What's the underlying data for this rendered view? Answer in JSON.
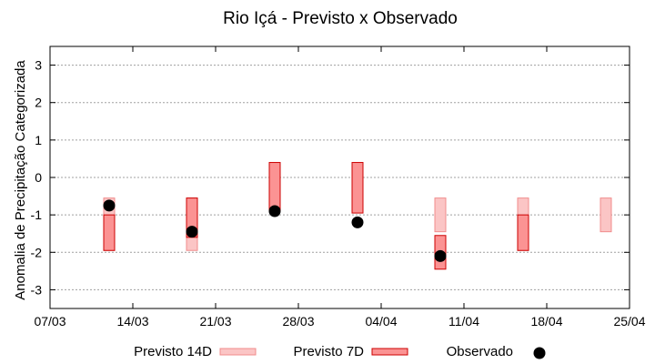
{
  "chart_data": {
    "type": "range",
    "title": "Rio Içá - Previsto x Observado",
    "xlabel": "",
    "ylabel": "Anomalia de Precipitação Categorizada",
    "ylim": [
      -3.5,
      3.5
    ],
    "yticks": [
      -3,
      -2,
      -1,
      0,
      1,
      2,
      3
    ],
    "xlim": [
      "2019-03-07",
      "2019-04-25"
    ],
    "xticks": [
      {
        "date": "2019-03-07",
        "label": "07/03"
      },
      {
        "date": "2019-03-14",
        "label": "14/03"
      },
      {
        "date": "2019-03-21",
        "label": "21/03"
      },
      {
        "date": "2019-03-28",
        "label": "28/03"
      },
      {
        "date": "2019-04-04",
        "label": "04/04"
      },
      {
        "date": "2019-04-11",
        "label": "11/04"
      },
      {
        "date": "2019-04-18",
        "label": "18/04"
      },
      {
        "date": "2019-04-25",
        "label": "25/04"
      }
    ],
    "grid": true,
    "series": [
      {
        "name": "Previsto 14D",
        "kind": "range",
        "fill": "#fbc5c5",
        "stroke": "#f08c8c",
        "points": [
          {
            "date": "2019-03-12",
            "low": -1.95,
            "high": -0.55
          },
          {
            "date": "2019-03-19",
            "low": -1.95,
            "high": -0.55
          },
          {
            "date": "2019-04-09",
            "low": -1.45,
            "high": -0.55
          },
          {
            "date": "2019-04-16",
            "low": -1.95,
            "high": -0.55
          },
          {
            "date": "2019-04-23",
            "low": -1.45,
            "high": -0.55
          }
        ]
      },
      {
        "name": "Previsto 7D",
        "kind": "range",
        "fill": "#fb9393",
        "stroke": "#cc0000",
        "points": [
          {
            "date": "2019-03-12",
            "low": -1.95,
            "high": -1.0
          },
          {
            "date": "2019-03-19",
            "low": -1.6,
            "high": -0.55
          },
          {
            "date": "2019-03-26",
            "low": -0.9,
            "high": 0.4
          },
          {
            "date": "2019-04-02",
            "low": -0.95,
            "high": 0.4
          },
          {
            "date": "2019-04-09",
            "low": -2.45,
            "high": -1.55
          },
          {
            "date": "2019-04-16",
            "low": -1.95,
            "high": -1.0
          }
        ]
      },
      {
        "name": "Observado",
        "kind": "scatter",
        "color": "#000000",
        "points": [
          {
            "date": "2019-03-12",
            "value": -0.75
          },
          {
            "date": "2019-03-19",
            "value": -1.45
          },
          {
            "date": "2019-03-26",
            "value": -0.9
          },
          {
            "date": "2019-04-02",
            "value": -1.2
          },
          {
            "date": "2019-04-09",
            "value": -2.1
          }
        ]
      }
    ],
    "legend": {
      "placement": "bottom"
    }
  }
}
